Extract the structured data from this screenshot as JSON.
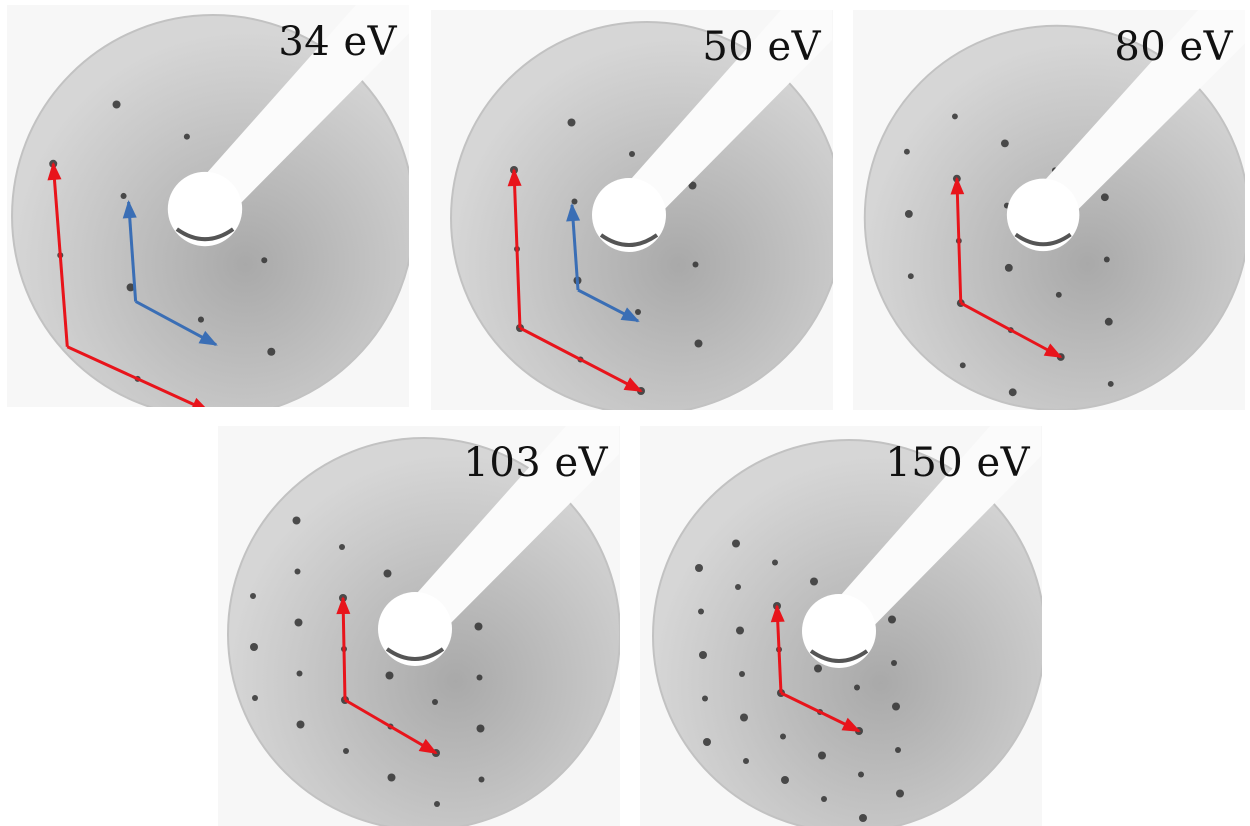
{
  "panels": [
    {
      "id": "34",
      "label": "34 eV",
      "arrows": [
        "red",
        "blue"
      ]
    },
    {
      "id": "50",
      "label": "50 eV",
      "arrows": [
        "red",
        "blue"
      ]
    },
    {
      "id": "80",
      "label": "80 eV",
      "arrows": [
        "red"
      ]
    },
    {
      "id": "103",
      "label": "103 eV",
      "arrows": [
        "red"
      ]
    },
    {
      "id": "150",
      "label": "150 eV",
      "arrows": [
        "red"
      ]
    }
  ],
  "colors": {
    "red_arrow": "#e8141b",
    "blue_arrow": "#3a6eb5",
    "background": "#f7f7f7",
    "screen_edge": "#d6d6d6",
    "screen_center": "#a9a9a9",
    "spot": "#333333"
  },
  "icons": [
    "electron-gun-holder",
    "diffraction-spot",
    "reciprocal-lattice-arrow"
  ]
}
